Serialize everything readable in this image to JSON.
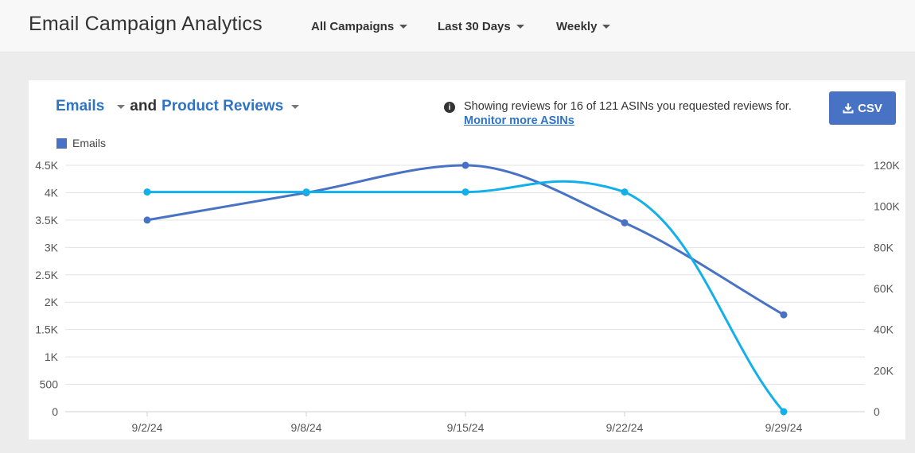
{
  "header": {
    "title": "Email Campaign Analytics",
    "filters": [
      {
        "label": "All Campaigns"
      },
      {
        "label": "Last 30 Days"
      },
      {
        "label": "Weekly"
      }
    ]
  },
  "card": {
    "primary_metric": "Emails",
    "connector": "and",
    "secondary_metric": "Product Reviews",
    "info_text": "Showing reviews for 16 of 121 ASINs you requested reviews for.",
    "info_link": "Monitor more ASINs",
    "csv_label": "CSV",
    "legend_label": "Emails"
  },
  "colors": {
    "emails": "#4872c4",
    "reviews": "#12b0ea",
    "accent": "#2f73c5"
  },
  "chart_data": {
    "type": "line",
    "x": [
      "9/2/24",
      "9/8/24",
      "9/15/24",
      "9/22/24",
      "9/29/24"
    ],
    "y_left": {
      "ticks": [
        "0",
        "500",
        "1K",
        "1.5K",
        "2K",
        "2.5K",
        "3K",
        "3.5K",
        "4K",
        "4.5K"
      ],
      "range": [
        0,
        4500
      ]
    },
    "y_right": {
      "ticks": [
        "0",
        "20K",
        "40K",
        "60K",
        "80K",
        "100K",
        "120K"
      ],
      "range": [
        0,
        120000
      ]
    },
    "grid": true,
    "series": [
      {
        "name": "Emails",
        "axis": "left",
        "values": [
          3500,
          4000,
          4500,
          3450,
          1770
        ]
      },
      {
        "axis": "right",
        "values": [
          107000,
          107000,
          107000,
          107000,
          0
        ]
      }
    ]
  }
}
